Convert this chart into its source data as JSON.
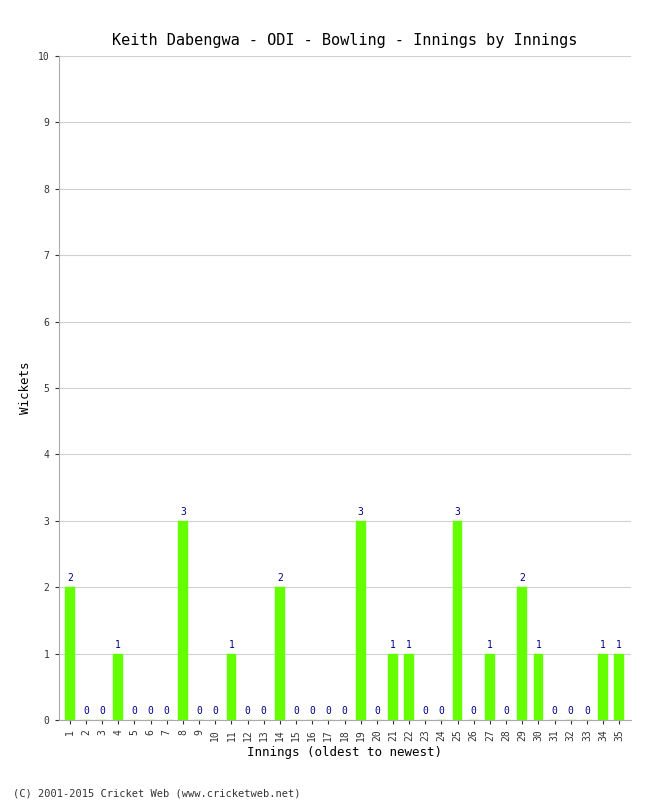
{
  "title": "Keith Dabengwa - ODI - Bowling - Innings by Innings",
  "xlabel": "Innings (oldest to newest)",
  "ylabel": "Wickets",
  "ylim": [
    0,
    10
  ],
  "yticks": [
    0,
    1,
    2,
    3,
    4,
    5,
    6,
    7,
    8,
    9,
    10
  ],
  "innings": [
    1,
    2,
    3,
    4,
    5,
    6,
    7,
    8,
    9,
    10,
    11,
    12,
    13,
    14,
    15,
    16,
    17,
    18,
    19,
    20,
    21,
    22,
    23,
    24,
    25,
    26,
    27,
    28,
    29,
    30,
    31,
    32,
    33,
    34,
    35
  ],
  "wickets": [
    2,
    0,
    0,
    1,
    0,
    0,
    0,
    3,
    0,
    0,
    1,
    0,
    0,
    2,
    0,
    0,
    0,
    0,
    3,
    0,
    1,
    1,
    0,
    0,
    3,
    0,
    1,
    0,
    2,
    1,
    0,
    0,
    0,
    1,
    1
  ],
  "bar_color": "#66ff00",
  "bar_edge_color": "#66ff00",
  "label_color": "#000080",
  "background_color": "#ffffff",
  "grid_color": "#d0d0d0",
  "copyright": "(C) 2001-2015 Cricket Web (www.cricketweb.net)",
  "title_fontsize": 11,
  "label_fontsize": 9,
  "tick_fontsize": 7,
  "annotation_fontsize": 7,
  "bar_width": 0.6
}
